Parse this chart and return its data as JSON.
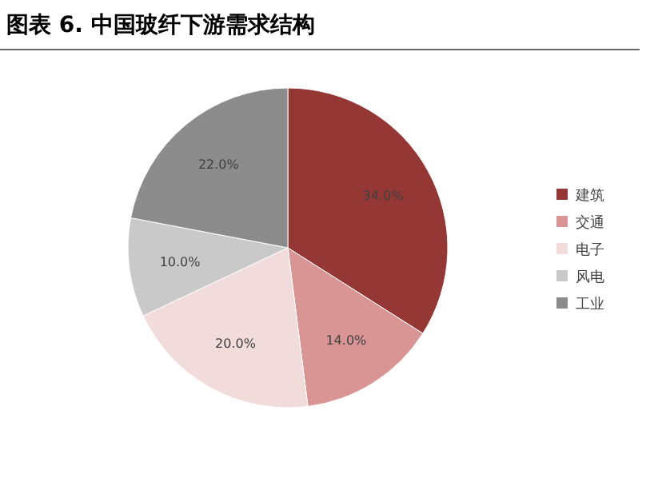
{
  "chart_data": {
    "type": "pie",
    "title": "图表 6. 中国玻纤下游需求结构",
    "categories": [
      "建筑",
      "交通",
      "电子",
      "风电",
      "工业"
    ],
    "values": [
      34.0,
      14.0,
      20.0,
      10.0,
      22.0
    ],
    "value_labels": [
      "34.0%",
      "14.0%",
      "20.0%",
      "10.0%",
      "22.0%"
    ],
    "colors": [
      "#953735",
      "#d99594",
      "#f2dcdb",
      "#c9c9c9",
      "#8c8c8c"
    ],
    "legend": "right"
  }
}
